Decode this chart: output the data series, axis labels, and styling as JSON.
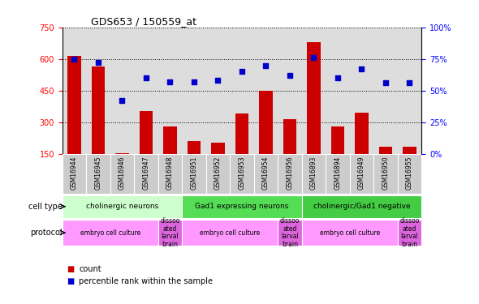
{
  "title": "GDS653 / 150559_at",
  "samples": [
    "GSM16944",
    "GSM16945",
    "GSM16946",
    "GSM16947",
    "GSM16948",
    "GSM16951",
    "GSM16952",
    "GSM16953",
    "GSM16954",
    "GSM16956",
    "GSM16893",
    "GSM16894",
    "GSM16949",
    "GSM16950",
    "GSM16955"
  ],
  "counts": [
    615,
    565,
    155,
    355,
    280,
    210,
    205,
    340,
    450,
    315,
    680,
    280,
    345,
    185,
    185
  ],
  "percentiles": [
    75,
    72,
    42,
    60,
    57,
    57,
    58,
    65,
    70,
    62,
    76,
    60,
    67,
    56,
    56
  ],
  "ylim_left": [
    150,
    750
  ],
  "ylim_right": [
    0,
    100
  ],
  "yticks_left": [
    150,
    300,
    450,
    600,
    750
  ],
  "yticks_right": [
    0,
    25,
    50,
    75,
    100
  ],
  "bar_color": "#cc0000",
  "dot_color": "#0000cc",
  "cell_types": [
    {
      "label": "cholinergic neurons",
      "start": 0,
      "end": 5,
      "color": "#ccffcc"
    },
    {
      "label": "Gad1 expressing neurons",
      "start": 5,
      "end": 10,
      "color": "#55dd55"
    },
    {
      "label": "cholinergic/Gad1 negative",
      "start": 10,
      "end": 15,
      "color": "#44cc44"
    }
  ],
  "protocols": [
    {
      "label": "embryo cell culture",
      "start": 0,
      "end": 4,
      "color": "#ff99ff"
    },
    {
      "label": "dissoo\nated\nlarval\nbrain",
      "start": 4,
      "end": 5,
      "color": "#dd66dd"
    },
    {
      "label": "embryo cell culture",
      "start": 5,
      "end": 9,
      "color": "#ff99ff"
    },
    {
      "label": "dissoo\nated\nlarval\nbrain",
      "start": 9,
      "end": 10,
      "color": "#dd66dd"
    },
    {
      "label": "embryo cell culture",
      "start": 10,
      "end": 14,
      "color": "#ff99ff"
    },
    {
      "label": "dissoo\nated\nlarval\nbrain",
      "start": 14,
      "end": 15,
      "color": "#dd66dd"
    }
  ],
  "cell_type_label": "cell type",
  "protocol_label": "protocol",
  "legend_count": "count",
  "legend_percentile": "percentile rank within the sample",
  "background_color": "#ffffff",
  "axis_bg_color": "#dddddd",
  "xtick_bg_color": "#cccccc"
}
